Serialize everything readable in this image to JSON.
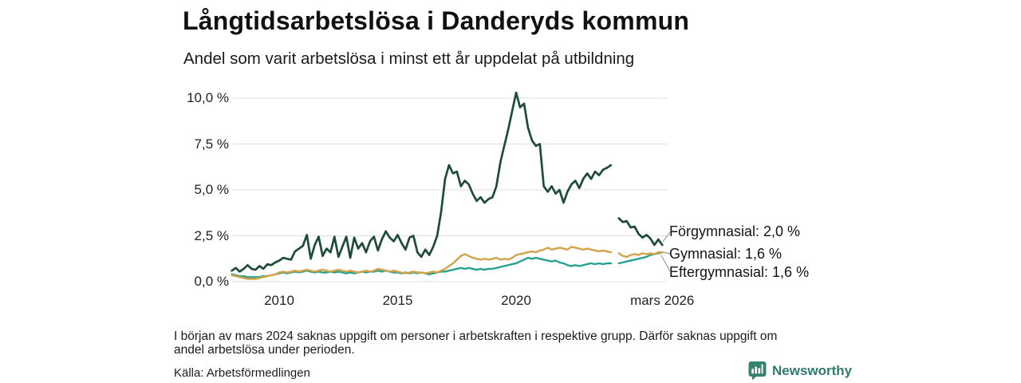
{
  "header": {
    "title": "Långtidsarbetslösa i Danderyds kommun",
    "subtitle": "Andel som varit arbetslösa i minst ett år uppdelat på utbildning"
  },
  "footnote": {
    "line1": "I början av mars 2024 saknas uppgift om personer i arbetskraften i respektive grupp. Därför saknas uppgift om",
    "line2": "andel arbetslösa under perioden."
  },
  "source": "Källa: Arbetsförmedlingen",
  "brand": {
    "name": "Newsworthy"
  },
  "colors": {
    "forgymnasial": "#1e4b3d",
    "gymnasial": "#d4a349",
    "eftergymnasial": "#2aa291",
    "grid": "#e3e3e3",
    "leader": "#9a9a9a",
    "brand_teal": "#2e7b6f"
  },
  "chart_data": {
    "type": "line",
    "title": "Långtidsarbetslösa i Danderyds kommun",
    "subtitle": "Andel som varit arbetslösa i minst ett år uppdelat på utbildning",
    "unit": "%",
    "x_start": 2008.0,
    "x_step": 0.1667,
    "xlim": [
      2008,
      2026.4
    ],
    "ylim": [
      0,
      10.5
    ],
    "grid": "horizontal",
    "missing_period_note": "mars 2024",
    "y_ticks": [
      {
        "value": 0,
        "label": "0,0 %"
      },
      {
        "value": 2.5,
        "label": "2,5 %"
      },
      {
        "value": 5,
        "label": "5,0 %"
      },
      {
        "value": 7.5,
        "label": "7,5 %"
      },
      {
        "value": 10,
        "label": "10,0 %"
      }
    ],
    "x_ticks": [
      {
        "value": 2010,
        "label": "2010"
      },
      {
        "value": 2015,
        "label": "2015"
      },
      {
        "value": 2020,
        "label": "2020"
      },
      {
        "value": 2026.17,
        "label": "mars 2026"
      }
    ],
    "series": [
      {
        "id": "forgymnasial",
        "name": "Förgymnasial",
        "end_label": "Förgymnasial: 2,0 %",
        "end_value": 2.0,
        "color": "#1e4b3d",
        "values": [
          0.6,
          0.75,
          0.55,
          0.7,
          0.9,
          0.7,
          0.65,
          0.85,
          0.7,
          0.95,
          0.9,
          1.05,
          1.15,
          1.3,
          1.25,
          1.2,
          1.65,
          1.8,
          1.95,
          2.55,
          1.25,
          2.0,
          2.45,
          1.4,
          1.8,
          1.6,
          2.45,
          1.35,
          1.9,
          2.45,
          1.3,
          2.4,
          1.8,
          2.1,
          1.6,
          2.2,
          2.45,
          1.7,
          2.3,
          2.75,
          2.4,
          2.2,
          2.55,
          2.1,
          1.75,
          2.4,
          2.5,
          1.6,
          1.35,
          1.75,
          1.45,
          1.9,
          2.5,
          3.8,
          5.6,
          6.35,
          5.9,
          6.0,
          5.2,
          5.5,
          5.3,
          4.8,
          4.4,
          4.6,
          4.3,
          4.5,
          4.6,
          5.2,
          6.5,
          7.4,
          8.3,
          9.3,
          10.3,
          9.5,
          9.7,
          8.4,
          7.7,
          7.4,
          7.5,
          5.2,
          4.9,
          5.2,
          4.8,
          5.0,
          4.3,
          4.9,
          5.3,
          5.5,
          5.1,
          5.6,
          5.9,
          5.6,
          6.0,
          5.8,
          6.1,
          6.2,
          6.35,
          null,
          3.45,
          3.25,
          3.3,
          2.95,
          3.0,
          2.6,
          2.4,
          2.55,
          2.35,
          2.0,
          2.3,
          2.0
        ]
      },
      {
        "id": "gymnasial",
        "name": "Gymnasial",
        "end_label": "Gymnasial: 1,6 %",
        "end_value": 1.6,
        "color": "#d4a349",
        "values": [
          0.35,
          0.3,
          0.25,
          0.2,
          0.15,
          0.15,
          0.15,
          0.2,
          0.25,
          0.3,
          0.35,
          0.4,
          0.5,
          0.55,
          0.5,
          0.55,
          0.6,
          0.55,
          0.6,
          0.65,
          0.6,
          0.55,
          0.6,
          0.65,
          0.6,
          0.55,
          0.6,
          0.65,
          0.6,
          0.55,
          0.6,
          0.55,
          0.5,
          0.55,
          0.6,
          0.55,
          0.6,
          0.7,
          0.65,
          0.6,
          0.55,
          0.6,
          0.55,
          0.5,
          0.45,
          0.5,
          0.55,
          0.5,
          0.5,
          0.45,
          0.5,
          0.55,
          0.5,
          0.6,
          0.7,
          0.85,
          1.0,
          1.2,
          1.4,
          1.5,
          1.4,
          1.3,
          1.25,
          1.2,
          1.25,
          1.2,
          1.25,
          1.3,
          1.2,
          1.25,
          1.2,
          1.3,
          1.45,
          1.5,
          1.55,
          1.6,
          1.65,
          1.6,
          1.7,
          1.75,
          1.85,
          1.75,
          1.8,
          1.85,
          1.8,
          1.75,
          1.9,
          1.85,
          1.8,
          1.75,
          1.8,
          1.75,
          1.7,
          1.65,
          1.7,
          1.65,
          1.6,
          null,
          1.55,
          1.4,
          1.35,
          1.45,
          1.5,
          1.45,
          1.55,
          1.5,
          1.55,
          1.5,
          1.6,
          1.6
        ]
      },
      {
        "id": "eftergymnasial",
        "name": "Eftergymnasial",
        "end_label": "Eftergymnasial: 1,6 %",
        "end_value": 1.6,
        "color": "#2aa291",
        "values": [
          0.4,
          0.35,
          0.3,
          0.3,
          0.25,
          0.25,
          0.25,
          0.25,
          0.3,
          0.3,
          0.35,
          0.4,
          0.45,
          0.5,
          0.45,
          0.5,
          0.55,
          0.5,
          0.55,
          0.6,
          0.55,
          0.5,
          0.55,
          0.5,
          0.5,
          0.55,
          0.5,
          0.55,
          0.5,
          0.45,
          0.5,
          0.45,
          0.5,
          0.55,
          0.5,
          0.55,
          0.55,
          0.6,
          0.55,
          0.6,
          0.55,
          0.5,
          0.5,
          0.45,
          0.5,
          0.45,
          0.5,
          0.45,
          0.5,
          0.45,
          0.4,
          0.45,
          0.5,
          0.55,
          0.55,
          0.6,
          0.65,
          0.7,
          0.75,
          0.7,
          0.75,
          0.7,
          0.65,
          0.7,
          0.65,
          0.7,
          0.7,
          0.75,
          0.8,
          0.85,
          0.9,
          0.95,
          1.0,
          1.1,
          1.2,
          1.3,
          1.25,
          1.3,
          1.25,
          1.2,
          1.15,
          1.1,
          1.15,
          1.05,
          1.0,
          0.9,
          0.85,
          0.9,
          0.85,
          0.9,
          0.95,
          1.0,
          0.95,
          1.0,
          0.95,
          1.0,
          1.0,
          null,
          1.0,
          1.05,
          1.1,
          1.15,
          1.2,
          1.25,
          1.3,
          1.35,
          1.45,
          1.5,
          1.55,
          1.6
        ]
      }
    ]
  }
}
